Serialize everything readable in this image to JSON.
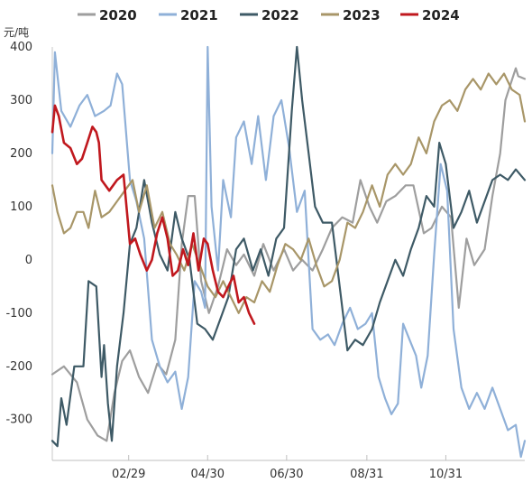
{
  "chart_data": {
    "type": "line",
    "ylabel": "元/吨",
    "ylim": [
      -370,
      400
    ],
    "yticks": [
      400,
      300,
      200,
      100,
      0,
      -100,
      -200,
      -300
    ],
    "xlabel": "",
    "x_domain": [
      "01/01",
      "12/31"
    ],
    "xticks": [
      {
        "label": "02/29",
        "pos": "02/29"
      },
      {
        "label": "04/30",
        "pos": "04/30"
      },
      {
        "label": "06/30",
        "pos": "06/30"
      },
      {
        "label": "08/31",
        "pos": "08/31"
      },
      {
        "label": "10/31",
        "pos": "10/31"
      }
    ],
    "legend": "top",
    "grid": false,
    "series": [
      {
        "name": "2020",
        "color": "#9e9e9e",
        "points": [
          [
            "01/01",
            -215
          ],
          [
            "01/10",
            -200
          ],
          [
            "01/20",
            -230
          ],
          [
            "01/28",
            -300
          ],
          [
            "02/05",
            -330
          ],
          [
            "02/12",
            -340
          ],
          [
            "02/18",
            -250
          ],
          [
            "02/24",
            -190
          ],
          [
            "03/01",
            -170
          ],
          [
            "03/08",
            -220
          ],
          [
            "03/15",
            -250
          ],
          [
            "03/22",
            -195
          ],
          [
            "03/29",
            -215
          ],
          [
            "04/05",
            -150
          ],
          [
            "04/10",
            30
          ],
          [
            "04/15",
            120
          ],
          [
            "04/20",
            120
          ],
          [
            "04/25",
            -40
          ],
          [
            "05/01",
            -100
          ],
          [
            "05/08",
            -50
          ],
          [
            "05/15",
            20
          ],
          [
            "05/22",
            -10
          ],
          [
            "05/28",
            10
          ],
          [
            "06/05",
            -30
          ],
          [
            "06/12",
            30
          ],
          [
            "06/20",
            -20
          ],
          [
            "06/28",
            20
          ],
          [
            "07/05",
            -20
          ],
          [
            "07/12",
            0
          ],
          [
            "07/20",
            -20
          ],
          [
            "07/28",
            20
          ],
          [
            "08/04",
            60
          ],
          [
            "08/12",
            80
          ],
          [
            "08/20",
            70
          ],
          [
            "08/26",
            150
          ],
          [
            "09/02",
            100
          ],
          [
            "09/08",
            70
          ],
          [
            "09/15",
            110
          ],
          [
            "09/22",
            120
          ],
          [
            "09/30",
            140
          ],
          [
            "10/06",
            140
          ],
          [
            "10/14",
            50
          ],
          [
            "10/20",
            60
          ],
          [
            "10/28",
            100
          ],
          [
            "11/04",
            80
          ],
          [
            "11/10",
            -90
          ],
          [
            "11/16",
            40
          ],
          [
            "11/22",
            -10
          ],
          [
            "11/30",
            20
          ],
          [
            "12/06",
            120
          ],
          [
            "12/12",
            200
          ],
          [
            "12/16",
            300
          ],
          [
            "12/20",
            330
          ],
          [
            "12/24",
            360
          ],
          [
            "12/26",
            345
          ],
          [
            "12/31",
            340
          ]
        ]
      },
      {
        "name": "2021",
        "color": "#8fb0d8",
        "points": [
          [
            "01/01",
            200
          ],
          [
            "01/03",
            390
          ],
          [
            "01/08",
            280
          ],
          [
            "01/15",
            250
          ],
          [
            "01/22",
            290
          ],
          [
            "01/28",
            310
          ],
          [
            "02/03",
            270
          ],
          [
            "02/10",
            280
          ],
          [
            "02/15",
            290
          ],
          [
            "02/20",
            350
          ],
          [
            "02/24",
            330
          ],
          [
            "03/01",
            150
          ],
          [
            "03/06",
            110
          ],
          [
            "03/12",
            40
          ],
          [
            "03/18",
            -150
          ],
          [
            "03/24",
            -200
          ],
          [
            "03/30",
            -230
          ],
          [
            "04/05",
            -210
          ],
          [
            "04/10",
            -280
          ],
          [
            "04/15",
            -220
          ],
          [
            "04/20",
            -40
          ],
          [
            "04/25",
            -60
          ],
          [
            "04/28",
            -90
          ],
          [
            "04/30",
            400
          ],
          [
            "05/03",
            100
          ],
          [
            "05/08",
            -20
          ],
          [
            "05/12",
            150
          ],
          [
            "05/18",
            80
          ],
          [
            "05/22",
            230
          ],
          [
            "05/28",
            260
          ],
          [
            "06/03",
            180
          ],
          [
            "06/08",
            270
          ],
          [
            "06/14",
            150
          ],
          [
            "06/20",
            270
          ],
          [
            "06/26",
            300
          ],
          [
            "07/02",
            210
          ],
          [
            "07/08",
            90
          ],
          [
            "07/14",
            130
          ],
          [
            "07/20",
            -130
          ],
          [
            "07/26",
            -150
          ],
          [
            "08/01",
            -140
          ],
          [
            "08/06",
            -160
          ],
          [
            "08/12",
            -120
          ],
          [
            "08/18",
            -90
          ],
          [
            "08/24",
            -130
          ],
          [
            "08/30",
            -120
          ],
          [
            "09/04",
            -100
          ],
          [
            "09/09",
            -220
          ],
          [
            "09/14",
            -260
          ],
          [
            "09/19",
            -290
          ],
          [
            "09/24",
            -270
          ],
          [
            "09/28",
            -120
          ],
          [
            "10/03",
            -150
          ],
          [
            "10/08",
            -180
          ],
          [
            "10/12",
            -240
          ],
          [
            "10/17",
            -180
          ],
          [
            "10/22",
            10
          ],
          [
            "10/27",
            180
          ],
          [
            "11/01",
            130
          ],
          [
            "11/06",
            -130
          ],
          [
            "11/12",
            -240
          ],
          [
            "11/18",
            -280
          ],
          [
            "11/24",
            -250
          ],
          [
            "11/30",
            -280
          ],
          [
            "12/06",
            -240
          ],
          [
            "12/12",
            -280
          ],
          [
            "12/18",
            -320
          ],
          [
            "12/24",
            -310
          ],
          [
            "12/28",
            -370
          ],
          [
            "12/31",
            -340
          ]
        ]
      },
      {
        "name": "2022",
        "color": "#3e5a66",
        "points": [
          [
            "01/01",
            -340
          ],
          [
            "01/05",
            -350
          ],
          [
            "01/08",
            -260
          ],
          [
            "01/12",
            -310
          ],
          [
            "01/18",
            -200
          ],
          [
            "01/25",
            -200
          ],
          [
            "01/29",
            -40
          ],
          [
            "02/04",
            -50
          ],
          [
            "02/08",
            -220
          ],
          [
            "02/10",
            -160
          ],
          [
            "02/13",
            -270
          ],
          [
            "02/16",
            -340
          ],
          [
            "02/20",
            -200
          ],
          [
            "02/25",
            -100
          ],
          [
            "03/01",
            30
          ],
          [
            "03/06",
            60
          ],
          [
            "03/12",
            150
          ],
          [
            "03/18",
            70
          ],
          [
            "03/24",
            10
          ],
          [
            "03/30",
            -20
          ],
          [
            "04/05",
            90
          ],
          [
            "04/10",
            40
          ],
          [
            "04/16",
            0
          ],
          [
            "04/22",
            -120
          ],
          [
            "04/28",
            -130
          ],
          [
            "05/04",
            -150
          ],
          [
            "05/10",
            -110
          ],
          [
            "05/16",
            -70
          ],
          [
            "05/22",
            20
          ],
          [
            "05/28",
            40
          ],
          [
            "06/04",
            -20
          ],
          [
            "06/10",
            20
          ],
          [
            "06/16",
            -30
          ],
          [
            "06/22",
            40
          ],
          [
            "06/28",
            60
          ],
          [
            "07/04",
            280
          ],
          [
            "07/08",
            400
          ],
          [
            "07/12",
            300
          ],
          [
            "07/17",
            200
          ],
          [
            "07/22",
            100
          ],
          [
            "07/28",
            70
          ],
          [
            "08/04",
            70
          ],
          [
            "08/10",
            -50
          ],
          [
            "08/16",
            -170
          ],
          [
            "08/22",
            -150
          ],
          [
            "08/28",
            -160
          ],
          [
            "09/04",
            -130
          ],
          [
            "09/10",
            -80
          ],
          [
            "09/16",
            -40
          ],
          [
            "09/22",
            0
          ],
          [
            "09/28",
            -30
          ],
          [
            "10/04",
            20
          ],
          [
            "10/10",
            60
          ],
          [
            "10/16",
            120
          ],
          [
            "10/22",
            100
          ],
          [
            "10/26",
            220
          ],
          [
            "10/31",
            180
          ],
          [
            "11/06",
            60
          ],
          [
            "11/12",
            90
          ],
          [
            "11/18",
            130
          ],
          [
            "11/24",
            70
          ],
          [
            "11/30",
            110
          ],
          [
            "12/06",
            150
          ],
          [
            "12/12",
            160
          ],
          [
            "12/18",
            150
          ],
          [
            "12/24",
            170
          ],
          [
            "12/31",
            150
          ]
        ]
      },
      {
        "name": "2023",
        "color": "#a89668",
        "points": [
          [
            "01/01",
            140
          ],
          [
            "01/05",
            90
          ],
          [
            "01/10",
            50
          ],
          [
            "01/15",
            60
          ],
          [
            "01/20",
            90
          ],
          [
            "01/25",
            90
          ],
          [
            "01/29",
            60
          ],
          [
            "02/03",
            130
          ],
          [
            "02/08",
            80
          ],
          [
            "02/14",
            90
          ],
          [
            "02/20",
            110
          ],
          [
            "02/26",
            130
          ],
          [
            "03/03",
            150
          ],
          [
            "03/08",
            90
          ],
          [
            "03/14",
            140
          ],
          [
            "03/20",
            60
          ],
          [
            "03/26",
            90
          ],
          [
            "04/01",
            30
          ],
          [
            "04/06",
            10
          ],
          [
            "04/12",
            -20
          ],
          [
            "04/18",
            30
          ],
          [
            "04/24",
            -10
          ],
          [
            "04/30",
            -50
          ],
          [
            "05/06",
            -70
          ],
          [
            "05/12",
            -40
          ],
          [
            "05/18",
            -70
          ],
          [
            "05/24",
            -100
          ],
          [
            "05/30",
            -70
          ],
          [
            "06/05",
            -80
          ],
          [
            "06/11",
            -40
          ],
          [
            "06/17",
            -60
          ],
          [
            "06/23",
            -10
          ],
          [
            "06/29",
            30
          ],
          [
            "07/05",
            20
          ],
          [
            "07/11",
            0
          ],
          [
            "07/17",
            40
          ],
          [
            "07/23",
            -10
          ],
          [
            "07/29",
            -50
          ],
          [
            "08/04",
            -40
          ],
          [
            "08/10",
            0
          ],
          [
            "08/16",
            70
          ],
          [
            "08/22",
            60
          ],
          [
            "08/28",
            90
          ],
          [
            "09/04",
            140
          ],
          [
            "09/10",
            100
          ],
          [
            "09/16",
            160
          ],
          [
            "09/22",
            180
          ],
          [
            "09/28",
            160
          ],
          [
            "10/04",
            180
          ],
          [
            "10/10",
            230
          ],
          [
            "10/16",
            200
          ],
          [
            "10/22",
            260
          ],
          [
            "10/28",
            290
          ],
          [
            "11/03",
            300
          ],
          [
            "11/09",
            280
          ],
          [
            "11/15",
            320
          ],
          [
            "11/21",
            340
          ],
          [
            "11/27",
            320
          ],
          [
            "12/03",
            350
          ],
          [
            "12/09",
            330
          ],
          [
            "12/15",
            350
          ],
          [
            "12/21",
            320
          ],
          [
            "12/27",
            310
          ],
          [
            "12/31",
            260
          ]
        ]
      },
      {
        "name": "2024",
        "color": "#c0181e",
        "points": [
          [
            "01/01",
            240
          ],
          [
            "01/03",
            290
          ],
          [
            "01/06",
            270
          ],
          [
            "01/10",
            220
          ],
          [
            "01/15",
            210
          ],
          [
            "01/20",
            180
          ],
          [
            "01/24",
            190
          ],
          [
            "01/28",
            220
          ],
          [
            "02/01",
            250
          ],
          [
            "02/04",
            240
          ],
          [
            "02/06",
            220
          ],
          [
            "02/08",
            150
          ],
          [
            "02/14",
            130
          ],
          [
            "02/20",
            150
          ],
          [
            "02/25",
            160
          ],
          [
            "03/01",
            30
          ],
          [
            "03/05",
            40
          ],
          [
            "03/09",
            10
          ],
          [
            "03/14",
            -20
          ],
          [
            "03/18",
            0
          ],
          [
            "03/22",
            50
          ],
          [
            "03/26",
            80
          ],
          [
            "03/30",
            40
          ],
          [
            "04/03",
            -30
          ],
          [
            "04/07",
            -20
          ],
          [
            "04/11",
            20
          ],
          [
            "04/15",
            -10
          ],
          [
            "04/19",
            50
          ],
          [
            "04/23",
            -20
          ],
          [
            "04/27",
            40
          ],
          [
            "04/30",
            30
          ],
          [
            "05/04",
            -20
          ],
          [
            "05/08",
            -60
          ],
          [
            "05/12",
            -70
          ],
          [
            "05/16",
            -50
          ],
          [
            "05/20",
            -30
          ],
          [
            "05/24",
            -80
          ],
          [
            "05/28",
            -70
          ],
          [
            "06/01",
            -100
          ],
          [
            "06/05",
            -120
          ]
        ]
      }
    ]
  }
}
